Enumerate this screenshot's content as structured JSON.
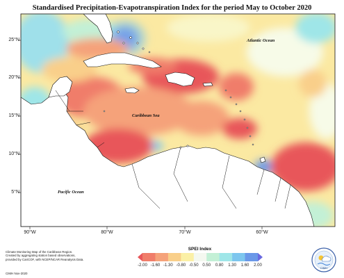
{
  "map": {
    "title": "Standardised Precipitation-Evapotranspiration Index for the period May to October 2020",
    "lat_labels": [
      "25°N",
      "20°N",
      "15°N",
      "10°N",
      "5°N"
    ],
    "lon_labels": [
      "90°W",
      "80°W",
      "70°W",
      "60°W"
    ],
    "ocean_labels": {
      "atlantic": "Atlantic Ocean",
      "caribbean": "Caribbean Sea",
      "pacific": "Pacific Ocean"
    }
  },
  "footer": {
    "note_lines": [
      "Climate Monitoring Map of the Caribbean Region.",
      "Created by aggregating station based observations,",
      "provided by CariCOF, with NCEP/NCAR Reanalysis Data."
    ],
    "credit": "CIMH Nov-2020"
  },
  "legend": {
    "title": "SPEI Index",
    "ticks": [
      "-2.00",
      "-1.60",
      "-1.30",
      "-0.80",
      "-0.50",
      "0.50",
      "0.80",
      "1.30",
      "1.60",
      "2.00"
    ],
    "colors": [
      "#e8575a",
      "#f07d6a",
      "#f5a27a",
      "#f9cf8a",
      "#fbf0a6",
      "#f4f8f0",
      "#c3f0d6",
      "#9fe6e8",
      "#7dc6ee",
      "#6a98e8",
      "#6a6ae0"
    ]
  },
  "logo": {
    "text": "CIMH"
  }
}
